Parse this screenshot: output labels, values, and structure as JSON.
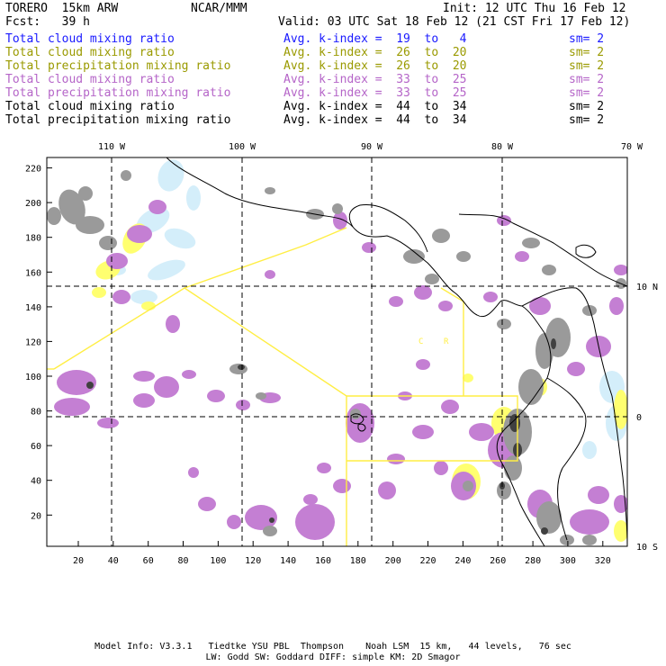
{
  "header": {
    "model": "TORERO  15km ARW",
    "org": "NCAR/MMM",
    "init": "Init: 12 UTC Thu 16 Feb 12",
    "fcst": "Fcst:   39 h",
    "valid": "Valid: 03 UTC Sat 18 Feb 12 (21 CST Fri 17 Feb 12)"
  },
  "legend": [
    {
      "field": "Total cloud mixing ratio",
      "kindex": "Avg. k-index =  19  to   4",
      "sm": "sm= 2",
      "color": "#1a1aff"
    },
    {
      "field": "Total cloud mixing ratio",
      "kindex": "Avg. k-index =  26  to  20",
      "sm": "sm= 2",
      "color": "#9a9a00"
    },
    {
      "field": "Total precipitation mixing ratio",
      "kindex": "Avg. k-index =  26  to  20",
      "sm": "sm= 2",
      "color": "#9a9a00"
    },
    {
      "field": "Total cloud mixing ratio",
      "kindex": "Avg. k-index =  33  to  25",
      "sm": "sm= 2",
      "color": "#b565c8"
    },
    {
      "field": "Total precipitation mixing ratio",
      "kindex": "Avg. k-index =  33  to  25",
      "sm": "sm= 2",
      "color": "#b565c8"
    },
    {
      "field": "Total cloud mixing ratio",
      "kindex": "Avg. k-index =  44  to  34",
      "sm": "sm= 2",
      "color": "#000000"
    },
    {
      "field": "Total precipitation mixing ratio",
      "kindex": "Avg. k-index =  44  to  34",
      "sm": "sm= 2",
      "color": "#000000"
    }
  ],
  "map": {
    "lon_labels": [
      "110 W",
      "100 W",
      "90 W",
      "80 W",
      "70 W"
    ],
    "lat_labels": [
      "10 N",
      "0",
      "10 S"
    ],
    "x_ticks": [
      "20",
      "40",
      "60",
      "80",
      "100",
      "120",
      "140",
      "160",
      "180",
      "200",
      "220",
      "240",
      "260",
      "280",
      "300",
      "320"
    ],
    "y_ticks": [
      "220",
      "200",
      "180",
      "160",
      "140",
      "120",
      "100",
      "80",
      "60",
      "40",
      "20"
    ],
    "region_labels": [
      "C",
      "R"
    ],
    "colors": {
      "cloud_light": "#d4eefa",
      "precip_light": "#ffff70",
      "cloud_mid": "#c47fd3",
      "precip_mid": "#b05cc8",
      "heavy": "#9a9a9a",
      "core": "#404040",
      "domain_outline": "#ffee44",
      "coast": "#000000"
    }
  },
  "footer": {
    "line1": "Model Info: V3.3.1   Tiedtke YSU PBL  Thompson    Noah LSM  15 km,   44 levels,   76 sec",
    "line2": "LW: Godd SW: Goddard DIFF: simple KM: 2D Smagor"
  }
}
